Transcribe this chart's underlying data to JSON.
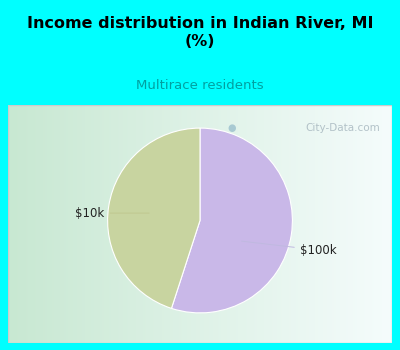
{
  "title": "Income distribution in Indian River, MI\n(%)",
  "subtitle": "Multirace residents",
  "subtitle_color": "#00a0a0",
  "title_color": "#000000",
  "bg_color_top": "#00ffff",
  "slices": [
    {
      "label": "$100k",
      "value": 55,
      "color": "#c9b8e8"
    },
    {
      "label": "$10k",
      "value": 45,
      "color": "#c8d4a0"
    }
  ],
  "watermark": "City-Data.com",
  "watermark_color": "#a8b8c0",
  "startangle": 90,
  "figsize": [
    4.0,
    3.5
  ],
  "dpi": 100,
  "chart_bg_left": "#c8e8d0",
  "chart_bg_right": "#f0f8f8",
  "chart_border_color": "#cccccc"
}
